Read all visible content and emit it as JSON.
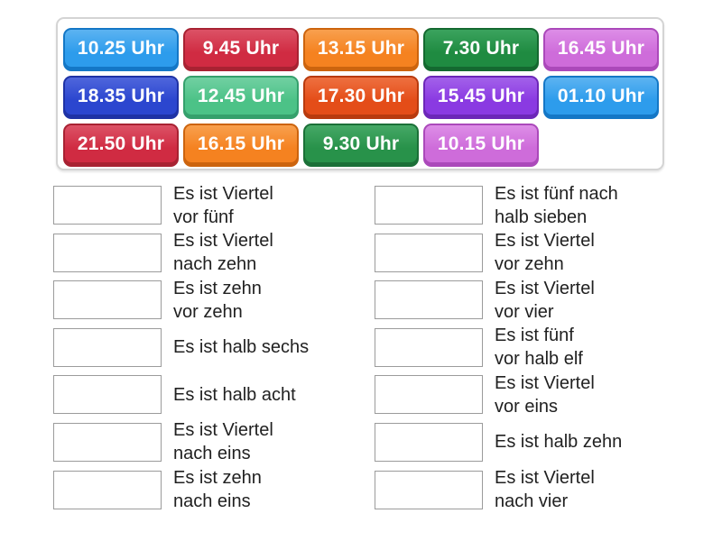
{
  "tile_panel": {
    "rows": [
      [
        {
          "label": "10.25 Uhr",
          "color": "#2d9cec",
          "dark": "#1477c6",
          "light": "#5cb3f1"
        },
        {
          "label": "9.45 Uhr",
          "color": "#d02b42",
          "dark": "#a82232",
          "light": "#dc5266"
        },
        {
          "label": "13.15 Uhr",
          "color": "#f58220",
          "dark": "#cc640e",
          "light": "#f8a04e"
        },
        {
          "label": "7.30 Uhr",
          "color": "#1f8b41",
          "dark": "#146930",
          "light": "#3ba35e"
        },
        {
          "label": "16.45 Uhr",
          "color": "#ce6cda",
          "dark": "#ab49ba",
          "light": "#dd8de7"
        }
      ],
      [
        {
          "label": "18.35 Uhr",
          "color": "#2b46cf",
          "dark": "#1e32a5",
          "light": "#4f66dc"
        },
        {
          "label": "12.45 Uhr",
          "color": "#4cc287",
          "dark": "#35a06c",
          "light": "#71d0a2"
        },
        {
          "label": "17.30 Uhr",
          "color": "#e44d18",
          "dark": "#b83a0e",
          "light": "#ee7040"
        },
        {
          "label": "15.45 Uhr",
          "color": "#8a3ae2",
          "dark": "#6c27b8",
          "light": "#a361ea"
        },
        {
          "label": "01.10 Uhr",
          "color": "#2d9cec",
          "dark": "#1477c6",
          "light": "#5cb3f1"
        }
      ],
      [
        {
          "label": "21.50 Uhr",
          "color": "#d02b42",
          "dark": "#a82232",
          "light": "#dc5266"
        },
        {
          "label": "16.15 Uhr",
          "color": "#f58220",
          "dark": "#cc640e",
          "light": "#f8a04e"
        },
        {
          "label": "9.30 Uhr",
          "color": "#28924a",
          "dark": "#1b7038",
          "light": "#45a866"
        },
        {
          "label": "10.15 Uhr",
          "color": "#ce6cda",
          "dark": "#ab49ba",
          "light": "#dd8de7"
        }
      ]
    ]
  },
  "left_column": [
    {
      "line1": "Es ist Viertel",
      "line2": "vor fünf"
    },
    {
      "line1": "Es ist Viertel",
      "line2": "nach zehn"
    },
    {
      "line1": "Es ist zehn",
      "line2": "vor zehn"
    },
    {
      "line1": "Es ist halb sechs"
    },
    {
      "line1": "Es ist halb acht"
    },
    {
      "line1": "Es ist Viertel",
      "line2": "nach eins"
    },
    {
      "line1": "Es ist zehn",
      "line2": "nach eins"
    }
  ],
  "right_column": [
    {
      "line1": "Es ist fünf nach",
      "line2": "halb sieben"
    },
    {
      "line1": "Es ist Viertel",
      "line2": "vor zehn"
    },
    {
      "line1": "Es ist Viertel",
      "line2": "vor vier"
    },
    {
      "line1": "Es ist fünf",
      "line2": "vor halb elf"
    },
    {
      "line1": "Es ist Viertel",
      "line2": "vor eins"
    },
    {
      "line1": "Es ist halb zehn"
    },
    {
      "line1": "Es ist Viertel",
      "line2": "nach vier"
    }
  ]
}
